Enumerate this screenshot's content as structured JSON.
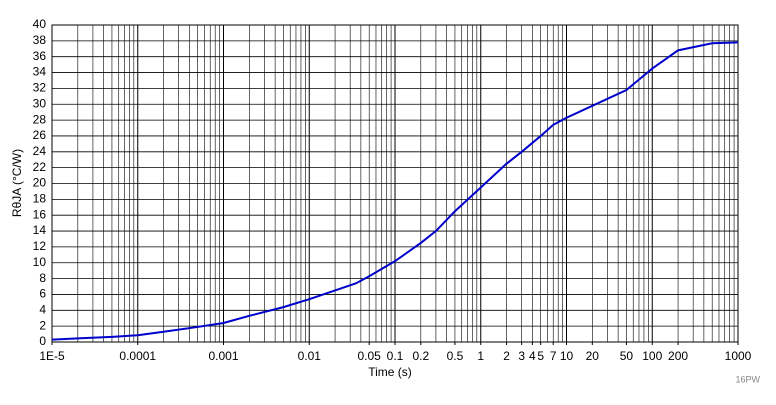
{
  "chart_data": {
    "type": "line",
    "xlabel": "Time (s)",
    "ylabel": "RθJA (°C/W)",
    "note": "16PW",
    "log_x": true,
    "grid": true,
    "minor_grid": true,
    "xlim": [
      1e-05,
      1000
    ],
    "ylim": [
      0,
      40
    ],
    "xticks": [
      {
        "value": 1e-05,
        "label": "1E-5"
      },
      0.0001,
      0.001,
      0.01,
      0.05,
      0.1,
      0.2,
      0.5,
      1,
      2,
      3,
      4,
      5,
      7,
      10,
      20,
      50,
      100,
      200,
      1000
    ],
    "yticks": [
      0,
      2,
      4,
      6,
      8,
      10,
      12,
      14,
      16,
      18,
      20,
      22,
      24,
      26,
      28,
      30,
      32,
      34,
      36,
      38,
      40
    ],
    "x": [
      1e-05,
      2e-05,
      5e-05,
      0.0001,
      0.0002,
      0.0005,
      0.001,
      0.002,
      0.005,
      0.01,
      0.02,
      0.035,
      0.05,
      0.1,
      0.2,
      0.3,
      0.5,
      1,
      2,
      3,
      5,
      7,
      10,
      20,
      50,
      100,
      200,
      500,
      1000
    ],
    "series": [
      {
        "color": "#0000cc",
        "values": [
          0.3,
          0.45,
          0.65,
          0.85,
          1.3,
          1.9,
          2.4,
          3.3,
          4.4,
          5.4,
          6.5,
          7.4,
          8.3,
          10.2,
          12.5,
          14,
          16.5,
          19.5,
          22.5,
          24,
          26,
          27.4,
          28.3,
          29.8,
          31.8,
          34.5,
          36.8,
          37.7,
          37.8
        ]
      }
    ]
  }
}
